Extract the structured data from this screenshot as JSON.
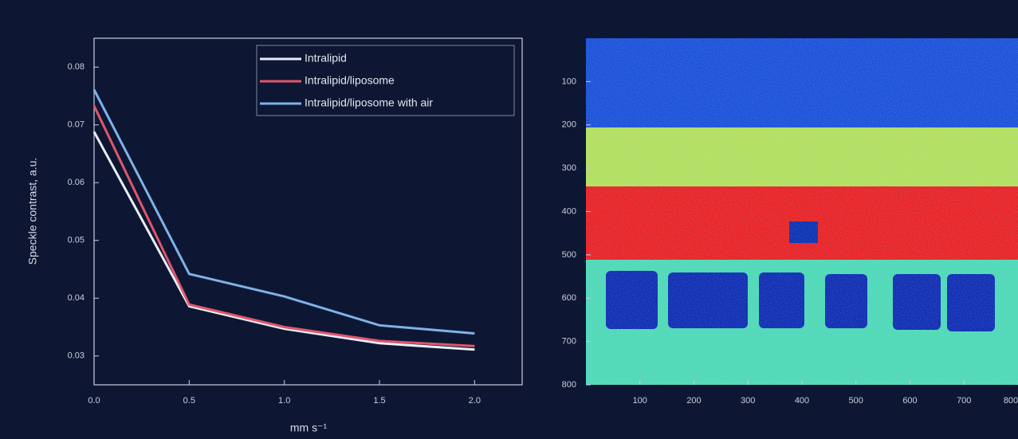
{
  "chart_data": [
    {
      "type": "line",
      "y_label": "Speckle contrast, a.u.",
      "x_label": "mm s⁻¹",
      "x": [
        0,
        0.5,
        1,
        1.5,
        2
      ],
      "series": [
        {
          "name": "Intralipid",
          "color": "#e8eef8",
          "values": [
            0.0688,
            0.0386,
            0.0347,
            0.0322,
            0.0311
          ]
        },
        {
          "name": "Intralipid/liposome",
          "color": "#e0566a",
          "values": [
            0.0733,
            0.0389,
            0.035,
            0.0326,
            0.0317
          ]
        },
        {
          "name": "Intralipid/liposome with air",
          "color": "#7fb2e8",
          "values": [
            0.0761,
            0.0442,
            0.0403,
            0.0353,
            0.0339
          ]
        }
      ],
      "xlim": [
        0,
        2.25
      ],
      "ylim": [
        0.025,
        0.085
      ],
      "xticks": [
        {
          "value": 0,
          "label": "0.0"
        },
        {
          "value": 0.5,
          "label": "0.5"
        },
        {
          "value": 1,
          "label": "1.0"
        },
        {
          "value": 1.5,
          "label": "1.5"
        },
        {
          "value": 2,
          "label": "2.0"
        }
      ],
      "yticks": [
        0.03,
        0.04,
        0.05,
        0.06,
        0.07,
        0.08
      ],
      "legend": "upper right"
    },
    {
      "type": "image",
      "xlim": [
        0,
        800
      ],
      "ylim": [
        800,
        0
      ],
      "xticks": [
        100,
        200,
        300,
        400,
        500,
        600,
        700,
        800
      ],
      "yticks": [
        100,
        200,
        300,
        400,
        500,
        600,
        700,
        800
      ]
    }
  ]
}
